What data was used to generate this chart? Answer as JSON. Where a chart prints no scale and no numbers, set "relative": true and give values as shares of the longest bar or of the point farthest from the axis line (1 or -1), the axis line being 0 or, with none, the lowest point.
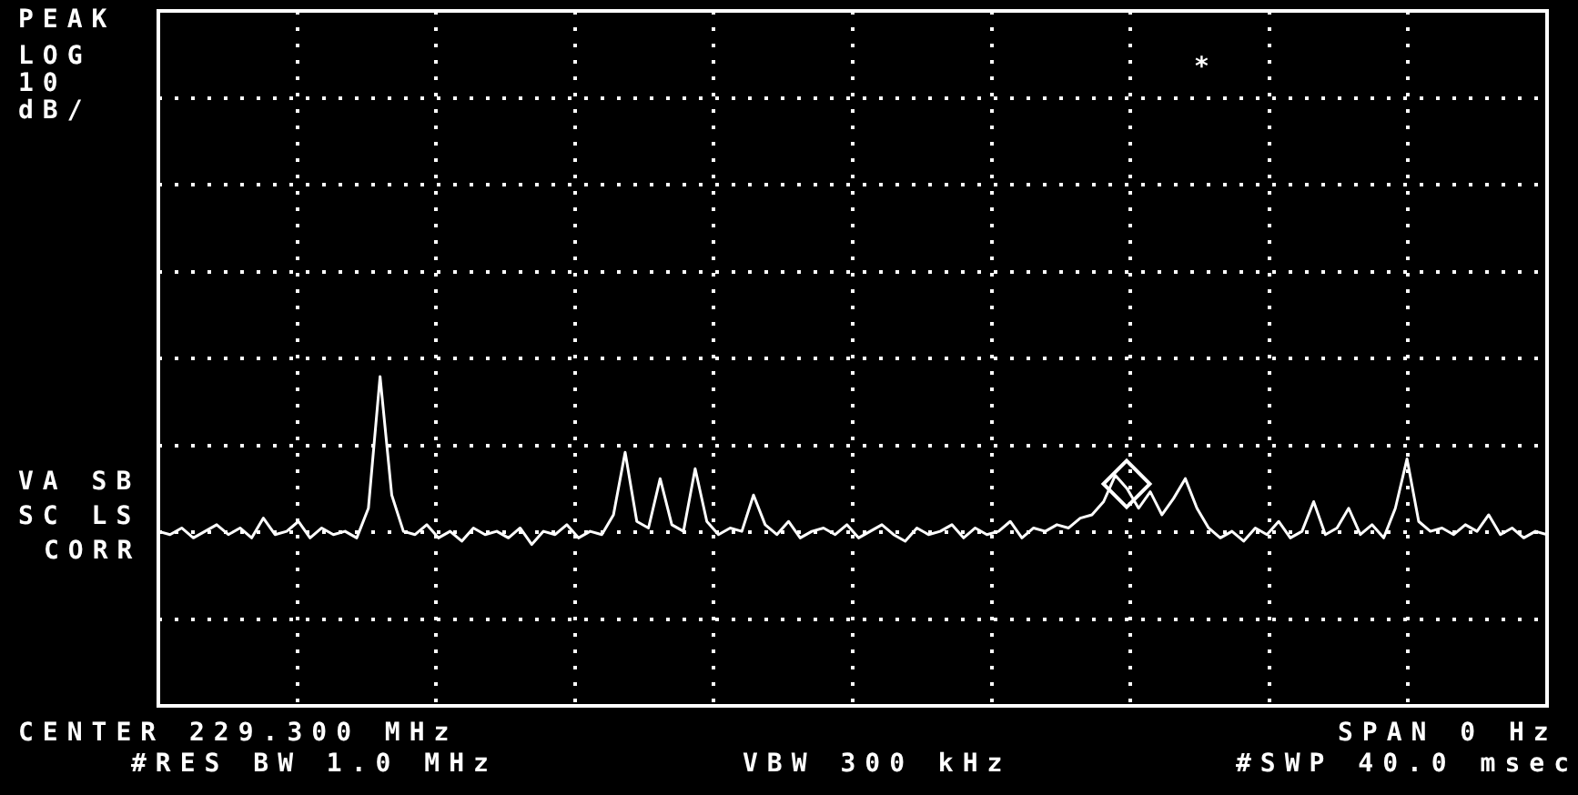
{
  "chart_data": {
    "type": "line",
    "relative": true,
    "grid": true,
    "legend": false,
    "marker": "none",
    "line_style": "solid",
    "categories": [
      null,
      null,
      null,
      null,
      null,
      null,
      null,
      null,
      null,
      null,
      null,
      null,
      null,
      null,
      null,
      null,
      null,
      null,
      null,
      null,
      null,
      null,
      null,
      null,
      null,
      null,
      null,
      null,
      null,
      null,
      null,
      null,
      null,
      null,
      null,
      null,
      null,
      null,
      null,
      null,
      null,
      null,
      null,
      null,
      null,
      null,
      null,
      null,
      null,
      null,
      null,
      null,
      null,
      null,
      null,
      null,
      null,
      null,
      null,
      null,
      null,
      null,
      null,
      null,
      null,
      null,
      null,
      null,
      null,
      null,
      null,
      null,
      null,
      null,
      null,
      null,
      null,
      null,
      null,
      null,
      null,
      null,
      null,
      null,
      null,
      null,
      null,
      null,
      null,
      null,
      null,
      null,
      null,
      null,
      null,
      null,
      null,
      null,
      null,
      null,
      null,
      null,
      null,
      null,
      null,
      null,
      null,
      null,
      null,
      null,
      null,
      null,
      null,
      null,
      null,
      null,
      null,
      null,
      null,
      null
    ],
    "series": [
      {
        "color": "#ffffff",
        "values": [
          0.53,
          0.52,
          0.54,
          0.51,
          0.53,
          0.55,
          0.52,
          0.54,
          0.51,
          0.57,
          0.52,
          0.53,
          0.56,
          0.51,
          0.54,
          0.52,
          0.53,
          0.51,
          0.6,
          1.0,
          0.64,
          0.53,
          0.52,
          0.55,
          0.51,
          0.53,
          0.5,
          0.54,
          0.52,
          0.53,
          0.51,
          0.54,
          0.49,
          0.53,
          0.52,
          0.55,
          0.51,
          0.53,
          0.52,
          0.58,
          0.77,
          0.56,
          0.54,
          0.69,
          0.55,
          0.53,
          0.72,
          0.56,
          0.52,
          0.54,
          0.53,
          0.64,
          0.55,
          0.52,
          0.56,
          0.51,
          0.53,
          0.54,
          0.52,
          0.55,
          0.51,
          0.53,
          0.55,
          0.52,
          0.5,
          0.54,
          0.52,
          0.53,
          0.55,
          0.51,
          0.54,
          0.52,
          0.53,
          0.56,
          0.51,
          0.54,
          0.53,
          0.55,
          0.54,
          0.57,
          0.58,
          0.62,
          0.7,
          0.66,
          0.6,
          0.65,
          0.58,
          0.63,
          0.69,
          0.6,
          0.54,
          0.51,
          0.53,
          0.5,
          0.54,
          0.52,
          0.56,
          0.51,
          0.53,
          0.62,
          0.52,
          0.54,
          0.6,
          0.52,
          0.55,
          0.51,
          0.6,
          0.75,
          0.56,
          0.53,
          0.54,
          0.52,
          0.55,
          0.53,
          0.58,
          0.52,
          0.54,
          0.51,
          0.53,
          0.52
        ]
      }
    ],
    "annotations": [
      "PEAK",
      "LOG",
      "10",
      "dB/",
      "VA SB",
      "SC LS",
      "CORR",
      "*",
      "CENTER 229.300 MHz",
      "SPAN 0 Hz",
      "#RES BW 1.0 MHz",
      "VBW 300 kHz",
      "#SWP 40.0 msec"
    ]
  }
}
